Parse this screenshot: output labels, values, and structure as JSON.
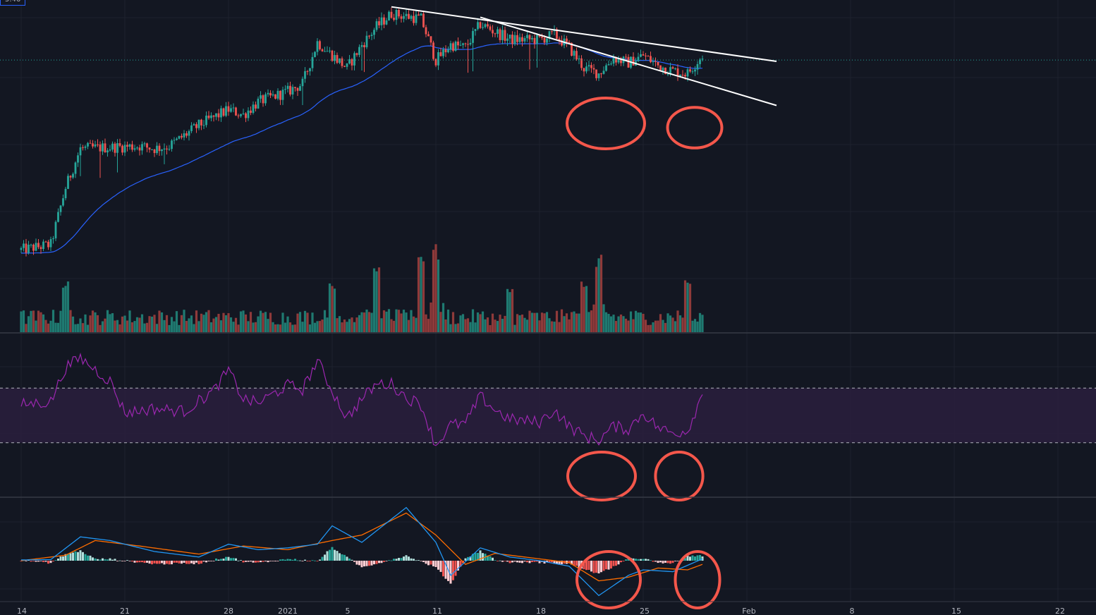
{
  "price_tag": "5.46",
  "colors": {
    "background": "#131722",
    "grid": "#1e222d",
    "up": "#26a69a",
    "down": "#ef5350",
    "up_volume": "#1f7a71",
    "down_volume": "#8f3a3a",
    "ema": "#2962ff",
    "last_price_line": "#26a69a",
    "rsi": "#9c27b0",
    "rsi_band": "#2a1f3d",
    "macd": "#2196f3",
    "signal": "#ff6d00",
    "trendline": "#ffffff",
    "annotation_circle": "#f4574b",
    "pane_separator": "#363a45"
  },
  "chart_data": [
    {
      "type": "candlestick",
      "pane": "price",
      "x_axis": {
        "type": "date",
        "start": "2020-12-14",
        "end": "2021-02-22",
        "ticks": [
          "14",
          "21",
          "28",
          "2021",
          "5",
          "11",
          "18",
          "25",
          "Feb",
          "8",
          "15",
          "22"
        ]
      },
      "ylim": [
        0.0,
        1.0
      ],
      "indicators": [
        {
          "type": "ema",
          "color": "#2962ff"
        }
      ],
      "grid": true,
      "last_price_line": true,
      "trendlines": [
        {
          "from": {
            "date": "2021-01-08",
            "value": 0.99
          },
          "to": {
            "date": "2021-02-03",
            "value": 0.78
          }
        },
        {
          "from": {
            "date": "2021-01-14",
            "value": 0.95
          },
          "to": {
            "date": "2021-02-03",
            "value": 0.61
          }
        }
      ],
      "annotations": [
        {
          "type": "circle",
          "date": "2021-01-22"
        },
        {
          "type": "circle",
          "date": "2021-01-28"
        }
      ],
      "keypoints": [
        [
          "2020-12-14",
          0.07
        ],
        [
          "2020-12-16",
          0.09
        ],
        [
          "2020-12-17",
          0.31
        ],
        [
          "2020-12-18",
          0.46
        ],
        [
          "2020-12-22",
          0.47
        ],
        [
          "2020-12-23",
          0.46
        ],
        [
          "2020-12-24",
          0.47
        ],
        [
          "2020-12-26",
          0.55
        ],
        [
          "2020-12-28",
          0.61
        ],
        [
          "2020-12-29",
          0.59
        ],
        [
          "2020-12-30",
          0.64
        ],
        [
          "2021-01-01",
          0.68
        ],
        [
          "2021-01-02",
          0.71
        ],
        [
          "2021-01-03",
          0.87
        ],
        [
          "2021-01-04",
          0.82
        ],
        [
          "2021-01-05",
          0.77
        ],
        [
          "2021-01-06",
          0.86
        ],
        [
          "2021-01-07",
          0.93
        ],
        [
          "2021-01-08",
          0.98
        ],
        [
          "2021-01-09",
          0.97
        ],
        [
          "2021-01-10",
          0.96
        ],
        [
          "2021-01-11",
          0.8
        ],
        [
          "2021-01-12",
          0.86
        ],
        [
          "2021-01-13",
          0.85
        ],
        [
          "2021-01-14",
          0.94
        ],
        [
          "2021-01-15",
          0.91
        ],
        [
          "2021-01-16",
          0.88
        ],
        [
          "2021-01-18",
          0.88
        ],
        [
          "2021-01-19",
          0.9
        ],
        [
          "2021-01-20",
          0.85
        ],
        [
          "2021-01-21",
          0.77
        ],
        [
          "2021-01-22",
          0.75
        ],
        [
          "2021-01-23",
          0.81
        ],
        [
          "2021-01-24",
          0.79
        ],
        [
          "2021-01-25",
          0.82
        ],
        [
          "2021-01-26",
          0.78
        ],
        [
          "2021-01-27",
          0.76
        ],
        [
          "2021-01-28",
          0.75
        ],
        [
          "2021-01-29",
          0.82
        ]
      ]
    },
    {
      "type": "bar",
      "pane": "volume",
      "series": [
        {
          "name": "",
          "color_by": "candle_direction"
        }
      ],
      "peaks": [
        [
          "2020-12-17",
          0.58
        ],
        [
          "2021-01-04",
          0.56
        ],
        [
          "2021-01-07",
          0.76
        ],
        [
          "2021-01-10",
          0.91
        ],
        [
          "2021-01-11",
          1.0
        ],
        [
          "2021-01-16",
          0.52
        ],
        [
          "2021-01-21",
          0.64
        ],
        [
          "2021-01-22",
          0.91
        ],
        [
          "2021-01-28",
          0.59
        ]
      ]
    },
    {
      "type": "line",
      "pane": "rsi",
      "ylim": [
        0,
        100
      ],
      "reference_lines": [
        70,
        30
      ],
      "band": [
        30,
        70
      ],
      "series": [
        {
          "name": "",
          "color": "#9c27b0"
        }
      ],
      "keypoints": [
        [
          "2020-12-14",
          58
        ],
        [
          "2020-12-16",
          60
        ],
        [
          "2020-12-17",
          85
        ],
        [
          "2020-12-18",
          92
        ],
        [
          "2020-12-20",
          75
        ],
        [
          "2020-12-21",
          52
        ],
        [
          "2020-12-23",
          55
        ],
        [
          "2020-12-25",
          53
        ],
        [
          "2020-12-27",
          68
        ],
        [
          "2020-12-28",
          83
        ],
        [
          "2020-12-29",
          62
        ],
        [
          "2020-12-30",
          59
        ],
        [
          "2021-01-01",
          72
        ],
        [
          "2021-01-02",
          69
        ],
        [
          "2021-01-03",
          90
        ],
        [
          "2021-01-04",
          68
        ],
        [
          "2021-01-05",
          48
        ],
        [
          "2021-01-06",
          62
        ],
        [
          "2021-01-07",
          73
        ],
        [
          "2021-01-08",
          73
        ],
        [
          "2021-01-09",
          63
        ],
        [
          "2021-01-10",
          58
        ],
        [
          "2021-01-11",
          28
        ],
        [
          "2021-01-12",
          43
        ],
        [
          "2021-01-13",
          44
        ],
        [
          "2021-01-14",
          64
        ],
        [
          "2021-01-15",
          54
        ],
        [
          "2021-01-16",
          47
        ],
        [
          "2021-01-18",
          45
        ],
        [
          "2021-01-19",
          54
        ],
        [
          "2021-01-20",
          42
        ],
        [
          "2021-01-21",
          35
        ],
        [
          "2021-01-22",
          32
        ],
        [
          "2021-01-23",
          42
        ],
        [
          "2021-01-24",
          40
        ],
        [
          "2021-01-25",
          52
        ],
        [
          "2021-01-26",
          41
        ],
        [
          "2021-01-27",
          37
        ],
        [
          "2021-01-28",
          39
        ],
        [
          "2021-01-29",
          66
        ]
      ]
    },
    {
      "type": "line",
      "pane": "macd",
      "series": [
        {
          "name": "",
          "color": "#2196f3"
        },
        {
          "name": "",
          "color": "#ff6d00"
        },
        {
          "name": "",
          "type": "histogram"
        }
      ],
      "keypoints_macd": [
        [
          "2020-12-14",
          0.02
        ],
        [
          "2020-12-16",
          0.03
        ],
        [
          "2020-12-18",
          0.65
        ],
        [
          "2020-12-20",
          0.55
        ],
        [
          "2020-12-23",
          0.25
        ],
        [
          "2020-12-26",
          0.1
        ],
        [
          "2020-12-28",
          0.45
        ],
        [
          "2020-12-30",
          0.3
        ],
        [
          "2021-01-01",
          0.35
        ],
        [
          "2021-01-03",
          0.45
        ],
        [
          "2021-01-04",
          0.95
        ],
        [
          "2021-01-06",
          0.5
        ],
        [
          "2021-01-09",
          1.45
        ],
        [
          "2021-01-11",
          0.5
        ],
        [
          "2021-01-12",
          -0.4
        ],
        [
          "2021-01-14",
          0.35
        ],
        [
          "2021-01-16",
          0.1
        ],
        [
          "2021-01-18",
          0.0
        ],
        [
          "2021-01-20",
          -0.15
        ],
        [
          "2021-01-22",
          -0.95
        ],
        [
          "2021-01-24",
          -0.4
        ],
        [
          "2021-01-25",
          -0.25
        ],
        [
          "2021-01-27",
          -0.3
        ],
        [
          "2021-01-29",
          0.05
        ]
      ],
      "keypoints_signal": [
        [
          "2020-12-14",
          0.0
        ],
        [
          "2020-12-17",
          0.15
        ],
        [
          "2020-12-19",
          0.55
        ],
        [
          "2020-12-22",
          0.4
        ],
        [
          "2020-12-26",
          0.18
        ],
        [
          "2020-12-29",
          0.4
        ],
        [
          "2021-01-01",
          0.3
        ],
        [
          "2021-01-04",
          0.55
        ],
        [
          "2021-01-06",
          0.7
        ],
        [
          "2021-01-09",
          1.3
        ],
        [
          "2021-01-11",
          0.7
        ],
        [
          "2021-01-13",
          -0.1
        ],
        [
          "2021-01-15",
          0.2
        ],
        [
          "2021-01-18",
          0.05
        ],
        [
          "2021-01-20",
          -0.05
        ],
        [
          "2021-01-22",
          -0.55
        ],
        [
          "2021-01-24",
          -0.45
        ],
        [
          "2021-01-26",
          -0.2
        ],
        [
          "2021-01-28",
          -0.25
        ],
        [
          "2021-01-29",
          -0.1
        ]
      ]
    }
  ]
}
